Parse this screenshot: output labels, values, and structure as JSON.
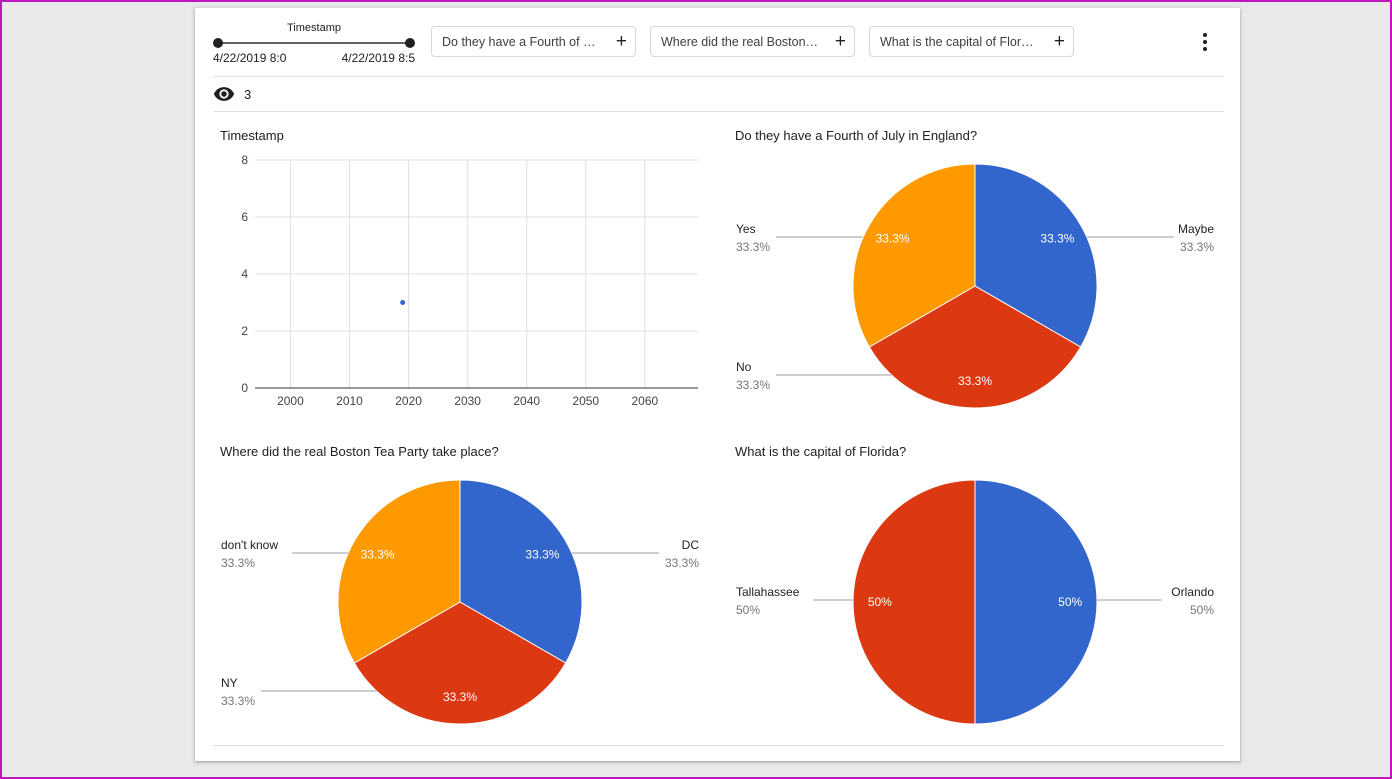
{
  "toolbar": {
    "slider": {
      "label": "Timestamp",
      "start": "4/22/2019 8:0",
      "end": "4/22/2019 8:5"
    },
    "filters": [
      {
        "label": "Do they have a Fourth of …"
      },
      {
        "label": "Where did the real Boston…"
      },
      {
        "label": "What is the capital of Flor…"
      }
    ],
    "overflow_menu_icon": "kebab-vertical"
  },
  "icons": {
    "plus_glyph": "+",
    "views_icon": "eye"
  },
  "summary": {
    "responses_count": "3"
  },
  "chart_data": [
    {
      "type": "scatter",
      "title": "Timestamp",
      "xlabel": "",
      "ylabel": "",
      "x_ticks": [
        2000,
        2010,
        2020,
        2030,
        2040,
        2050,
        2060
      ],
      "y_ticks": [
        0,
        2,
        4,
        6,
        8
      ],
      "xlim": [
        1994,
        2069
      ],
      "ylim": [
        0,
        8
      ],
      "grid": true,
      "point_color": "#3366cc",
      "points": [
        {
          "x": 2019,
          "y": 3
        }
      ]
    },
    {
      "type": "pie",
      "title": "Do they have a Fourth of July in England?",
      "legend_position": "outside-callouts",
      "slices": [
        {
          "label": "Maybe",
          "value": 33.3,
          "pct": "33.3%",
          "color": "#3366cc",
          "callout_side": "right"
        },
        {
          "label": "No",
          "value": 33.3,
          "pct": "33.3%",
          "color": "#dc3912",
          "callout_side": "bottom-left"
        },
        {
          "label": "Yes",
          "value": 33.3,
          "pct": "33.3%",
          "color": "#ff9900",
          "callout_side": "left"
        }
      ]
    },
    {
      "type": "pie",
      "title": "Where did the real Boston Tea Party take place?",
      "legend_position": "outside-callouts",
      "slices": [
        {
          "label": "DC",
          "value": 33.3,
          "pct": "33.3%",
          "color": "#3366cc",
          "callout_side": "right"
        },
        {
          "label": "NY",
          "value": 33.3,
          "pct": "33.3%",
          "color": "#dc3912",
          "callout_side": "bottom-left"
        },
        {
          "label": "don't know",
          "value": 33.3,
          "pct": "33.3%",
          "color": "#ff9900",
          "callout_side": "left"
        }
      ]
    },
    {
      "type": "pie",
      "title": "What is the capital of Florida?",
      "legend_position": "outside-callouts",
      "slices": [
        {
          "label": "Orlando",
          "value": 50,
          "pct": "50%",
          "color": "#3366cc",
          "callout_side": "right-mid"
        },
        {
          "label": "Tallahassee",
          "value": 50,
          "pct": "50%",
          "color": "#dc3912",
          "callout_side": "left-mid"
        }
      ]
    }
  ]
}
